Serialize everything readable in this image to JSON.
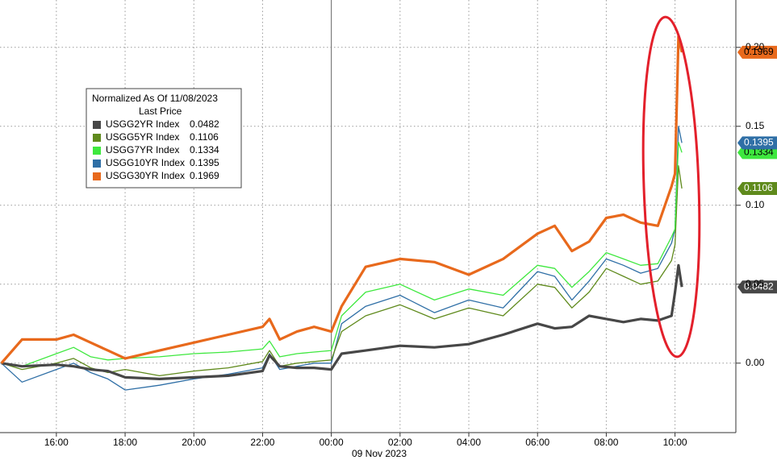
{
  "chart_data": {
    "type": "line",
    "legend_title": "Normalized As Of 11/08/2023",
    "legend_subtitle": "Last Price",
    "xlabel": "09 Nov 2023",
    "grid": true,
    "x": [
      14.4,
      15,
      16,
      16.5,
      17,
      17.5,
      18,
      19,
      20,
      21,
      22,
      22.2,
      22.5,
      23,
      23.5,
      24,
      24.3,
      25,
      26,
      27,
      28,
      29,
      30,
      30.5,
      31,
      31.5,
      32,
      32.5,
      33,
      33.5,
      33.9,
      34.0,
      34.1,
      34.2
    ],
    "xlim": [
      14.36,
      35.77
    ],
    "xticks": [
      {
        "value": 16,
        "label": "16:00"
      },
      {
        "value": 18,
        "label": "18:00"
      },
      {
        "value": 20,
        "label": "20:00"
      },
      {
        "value": 22,
        "label": "22:00"
      },
      {
        "value": 24,
        "label": "00:00"
      },
      {
        "value": 26,
        "label": "02:00"
      },
      {
        "value": 28,
        "label": "04:00"
      },
      {
        "value": 30,
        "label": "06:00"
      },
      {
        "value": 32,
        "label": "08:00"
      },
      {
        "value": 34,
        "label": "10:00"
      }
    ],
    "ylim": [
      -0.044,
      0.23
    ],
    "yticks": [
      {
        "value": 0,
        "label": "0.00"
      },
      {
        "value": 0.05,
        "label": "0.05"
      },
      {
        "value": 0.1,
        "label": "0.10"
      },
      {
        "value": 0.15,
        "label": "0.15"
      },
      {
        "value": 0.2,
        "label": "0.20"
      }
    ],
    "series": [
      {
        "name": "USGG2YR Index",
        "color": "#474747",
        "values": [
          0,
          -0.002,
          -0.001,
          -0.002,
          -0.004,
          -0.005,
          -0.009,
          -0.01,
          -0.009,
          -0.008,
          -0.005,
          0.005,
          -0.002,
          -0.003,
          -0.003,
          -0.004,
          0.006,
          0.008,
          0.011,
          0.01,
          0.012,
          0.018,
          0.025,
          0.022,
          0.023,
          0.03,
          0.028,
          0.026,
          0.028,
          0.027,
          0.03,
          0.045,
          0.062,
          0.0482
        ]
      },
      {
        "name": "USGG5YR Index",
        "color": "#5f8a1c",
        "values": [
          0,
          -0.004,
          0.0,
          0.003,
          -0.003,
          -0.006,
          -0.004,
          -0.008,
          -0.005,
          -0.003,
          0.001,
          0.008,
          -0.002,
          0.0,
          0.001,
          0.002,
          0.02,
          0.03,
          0.037,
          0.028,
          0.035,
          0.03,
          0.05,
          0.048,
          0.035,
          0.045,
          0.06,
          0.055,
          0.05,
          0.052,
          0.065,
          0.075,
          0.125,
          0.1106
        ]
      },
      {
        "name": "USGG7YR Index",
        "color": "#3ee83e",
        "values": [
          0,
          -0.002,
          0.006,
          0.01,
          0.004,
          0.002,
          0.003,
          0.004,
          0.006,
          0.007,
          0.009,
          0.014,
          0.004,
          0.006,
          0.007,
          0.008,
          0.03,
          0.045,
          0.05,
          0.04,
          0.047,
          0.043,
          0.062,
          0.06,
          0.048,
          0.058,
          0.07,
          0.066,
          0.062,
          0.063,
          0.08,
          0.085,
          0.14,
          0.1334
        ]
      },
      {
        "name": "USGG10YR Index",
        "color": "#2f6fa6",
        "values": [
          0,
          -0.012,
          -0.004,
          0.0,
          -0.006,
          -0.01,
          -0.017,
          -0.014,
          -0.01,
          -0.007,
          -0.003,
          0.006,
          -0.004,
          -0.002,
          0.0,
          0.0,
          0.025,
          0.036,
          0.043,
          0.032,
          0.04,
          0.035,
          0.058,
          0.055,
          0.04,
          0.052,
          0.066,
          0.062,
          0.057,
          0.06,
          0.076,
          0.085,
          0.15,
          0.1395
        ]
      },
      {
        "name": "USGG30YR Index",
        "color": "#e8691c",
        "values": [
          0,
          0.015,
          0.015,
          0.018,
          0.013,
          0.008,
          0.003,
          0.008,
          0.013,
          0.018,
          0.023,
          0.028,
          0.015,
          0.02,
          0.023,
          0.02,
          0.036,
          0.061,
          0.066,
          0.064,
          0.056,
          0.066,
          0.082,
          0.087,
          0.071,
          0.077,
          0.092,
          0.094,
          0.089,
          0.087,
          0.112,
          0.12,
          0.207,
          0.1969
        ]
      }
    ]
  }
}
